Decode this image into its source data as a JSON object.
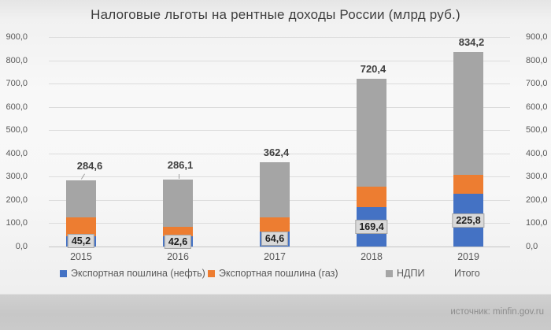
{
  "title": "Налоговые льготы на рентные доходы России (млрд руб.)",
  "source": "источник: minfin.gov.ru",
  "chart_data": {
    "type": "bar",
    "stacked": true,
    "title": "Налоговые льготы на рентные доходы России (млрд руб.)",
    "xlabel": "",
    "ylabel": "",
    "ylim": [
      0,
      900
    ],
    "grid": true,
    "legend_position": "bottom",
    "categories": [
      "2015",
      "2016",
      "2017",
      "2018",
      "2019"
    ],
    "y_ticks": [
      "0,0",
      "100,0",
      "200,0",
      "300,0",
      "400,0",
      "500,0",
      "600,0",
      "700,0",
      "800,0",
      "900,0"
    ],
    "series": [
      {
        "name": "Экспортная пошлина (нефть)",
        "color": "#4472C4",
        "values": [
          45.2,
          42.6,
          64.6,
          169.4,
          225.8
        ],
        "value_labels": [
          "45,2",
          "42,6",
          "64,6",
          "169,4",
          "225,8"
        ],
        "labeled_on_chart": true
      },
      {
        "name": "Экспортная пошлина (газ)",
        "color": "#ED7D31",
        "values": [
          80.0,
          42.0,
          60.0,
          88.0,
          83.0
        ],
        "labeled_on_chart": false,
        "values_estimated": true
      },
      {
        "name": "НДПИ",
        "color": "#A5A5A5",
        "values": [
          159.4,
          201.5,
          237.8,
          463.0,
          525.4
        ],
        "labeled_on_chart": false,
        "values_estimated": true
      }
    ],
    "totals": {
      "name": "Итого",
      "values": [
        284.6,
        286.1,
        362.4,
        720.4,
        834.2
      ],
      "labels": [
        "284,6",
        "286,1",
        "362,4",
        "720,4",
        "834,2"
      ],
      "callouts": [
        "diagonal",
        "vertical",
        null,
        null,
        null
      ]
    },
    "legend": [
      {
        "label": "Экспортная пошлина (нефть)",
        "swatch": "#4472C4"
      },
      {
        "label": "Экспортная пошлина (газ)",
        "swatch": "#ED7D31"
      },
      {
        "label": "НДПИ",
        "swatch": "#A5A5A5"
      },
      {
        "label": "Итого",
        "swatch": null
      }
    ],
    "value_box_style": {
      "fill": "#D9D9D9",
      "border": "#A6A6A6"
    }
  }
}
